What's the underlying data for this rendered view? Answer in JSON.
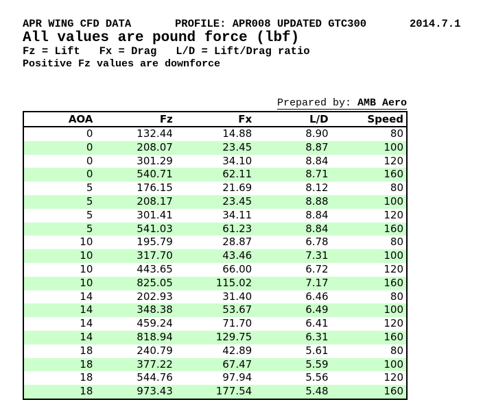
{
  "header": {
    "title_left": "APR WING CFD DATA",
    "title_profile": "PROFILE: APR008 UPDATED GTC300",
    "title_date": "2014.7.1",
    "subtitle": "All values are pound force (lbf)",
    "legend": "Fz = Lift   Fx = Drag   L/D = Lift/Drag ratio",
    "note": "Positive Fz values are downforce",
    "prepared_by_label": "Prepared by: ",
    "prepared_by_value": "AMB Aero"
  },
  "table": {
    "columns": [
      "AOA",
      "Fz",
      "Fx",
      "L/D",
      "Speed"
    ],
    "rows": [
      [
        "0",
        "132.44",
        "14.88",
        "8.90",
        "80"
      ],
      [
        "0",
        "208.07",
        "23.45",
        "8.87",
        "100"
      ],
      [
        "0",
        "301.29",
        "34.10",
        "8.84",
        "120"
      ],
      [
        "0",
        "540.71",
        "62.11",
        "8.71",
        "160"
      ],
      [
        "5",
        "176.15",
        "21.69",
        "8.12",
        "80"
      ],
      [
        "5",
        "208.17",
        "23.45",
        "8.88",
        "100"
      ],
      [
        "5",
        "301.41",
        "34.11",
        "8.84",
        "120"
      ],
      [
        "5",
        "541.03",
        "61.23",
        "8.84",
        "160"
      ],
      [
        "10",
        "195.79",
        "28.87",
        "6.78",
        "80"
      ],
      [
        "10",
        "317.70",
        "43.46",
        "7.31",
        "100"
      ],
      [
        "10",
        "443.65",
        "66.00",
        "6.72",
        "120"
      ],
      [
        "10",
        "825.05",
        "115.02",
        "7.17",
        "160"
      ],
      [
        "14",
        "202.93",
        "31.40",
        "6.46",
        "80"
      ],
      [
        "14",
        "348.38",
        "53.67",
        "6.49",
        "100"
      ],
      [
        "14",
        "459.24",
        "71.70",
        "6.41",
        "120"
      ],
      [
        "14",
        "818.94",
        "129.75",
        "6.31",
        "160"
      ],
      [
        "18",
        "240.79",
        "42.89",
        "5.61",
        "80"
      ],
      [
        "18",
        "377.22",
        "67.47",
        "5.59",
        "100"
      ],
      [
        "18",
        "544.76",
        "97.94",
        "5.56",
        "120"
      ],
      [
        "18",
        "973.43",
        "177.54",
        "5.48",
        "160"
      ]
    ]
  },
  "colors": {
    "stripe_green": "#ccffcc",
    "border": "#000000",
    "text": "#000000",
    "background": "#ffffff"
  }
}
